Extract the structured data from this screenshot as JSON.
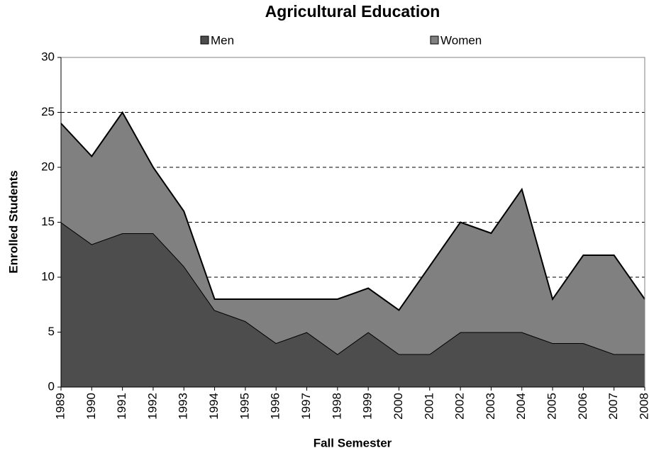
{
  "chart_data": {
    "type": "stacked_area",
    "title": "Agricultural Education",
    "x_label": "Fall Semester",
    "y_label": "Enrolled Students",
    "categories": [
      "1989",
      "1990",
      "1991",
      "1992",
      "1993",
      "1994",
      "1995",
      "1996",
      "1997",
      "1998",
      "1999",
      "2000",
      "2001",
      "2002",
      "2003",
      "2004",
      "2005",
      "2006",
      "2007",
      "2008"
    ],
    "series": [
      {
        "name": "Men",
        "color": "#4d4d4d",
        "values": [
          15,
          13,
          14,
          14,
          11,
          7,
          6,
          4,
          5,
          3,
          5,
          3,
          3,
          5,
          5,
          5,
          4,
          4,
          3,
          3
        ]
      },
      {
        "name": "Women",
        "color": "#808080",
        "values": [
          9,
          8,
          11,
          6,
          5,
          1,
          2,
          4,
          3,
          5,
          4,
          4,
          8,
          10,
          9,
          13,
          4,
          8,
          9,
          5
        ]
      }
    ],
    "ylim": [
      0,
      30
    ],
    "yticks": [
      0,
      5,
      10,
      15,
      20,
      25,
      30
    ],
    "grid": true,
    "legend": "top"
  }
}
